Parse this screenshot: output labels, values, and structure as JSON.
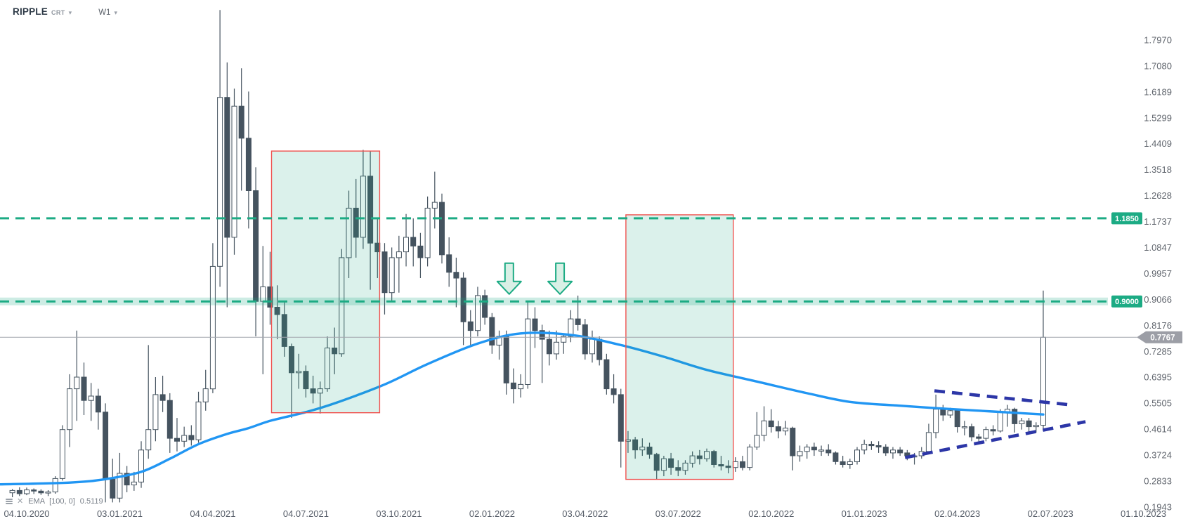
{
  "header": {
    "symbol": "RIPPLE",
    "symbol_suffix": "CRT",
    "timeframe": "W1",
    "caret_glyph": "▾"
  },
  "indicator": {
    "name": "EMA",
    "params": "[100, 0]",
    "value": "0.5119",
    "close_glyph": "✕",
    "icons": {
      "source": "rows-icon",
      "close": "close-icon"
    }
  },
  "colors": {
    "background": "#ffffff",
    "candle_up_fill": "#ffffff",
    "candle_down_fill": "#45535f",
    "candle_border": "#45535f",
    "ema_line": "#2196f3",
    "level_green": "#1cab84",
    "level_halo": "rgba(28,170,130,0.22)",
    "zone_fill": "rgba(28,170,130,0.16)",
    "zone_border": "#ef5350",
    "trendline_navy": "#2c36a7",
    "price_line_gray": "#a2a5ad",
    "price_badge_gray": "#9c9ea6",
    "axis_text": "#61666e",
    "date_text": "#565d68",
    "arrow_fill": "#d9f0e6",
    "arrow_stroke": "#1cab84",
    "badge_text": "#ffffff"
  },
  "chart_data": {
    "type": "candlestick",
    "symbol": "RIPPLE",
    "interval": "1W",
    "start_date": "2020-09-20",
    "y_axis": {
      "min": 0.1943,
      "max": 1.797,
      "ticks": [
        "1.7970",
        "1.7080",
        "1.6189",
        "1.5299",
        "1.4409",
        "1.3518",
        "1.2628",
        "1.1737",
        "1.0847",
        "0.9957",
        "0.9066",
        "0.8176",
        "0.7285",
        "0.6395",
        "0.5505",
        "0.4614",
        "0.3724",
        "0.2833",
        "0.1943"
      ]
    },
    "x_axis": {
      "labels": [
        "04.10.2020",
        "03.01.2021",
        "04.04.2021",
        "04.07.2021",
        "03.10.2021",
        "02.01.2022",
        "03.04.2022",
        "03.07.2022",
        "02.10.2022",
        "01.01.2023",
        "02.04.2023",
        "02.07.2023",
        "01.10.2023"
      ]
    },
    "current_price": {
      "value": 0.7767,
      "label": "0.7767"
    },
    "levels": [
      {
        "price": 1.185,
        "label": "1.1850",
        "halo": false
      },
      {
        "price": 0.9,
        "label": "0.9000",
        "halo": true
      }
    ],
    "zones": [
      {
        "week_start": 36.2,
        "week_end": 51.3,
        "price_top": 1.416,
        "price_bottom": 0.518
      },
      {
        "week_start": 85.7,
        "week_end": 100.7,
        "price_top": 1.197,
        "price_bottom": 0.289
      }
    ],
    "trendlines": [
      {
        "week1": 128.8,
        "price1": 0.593,
        "week2": 148.2,
        "price2": 0.544
      },
      {
        "week1": 124.7,
        "price1": 0.364,
        "week2": 149.9,
        "price2": 0.487
      }
    ],
    "arrows": [
      {
        "week": 69.4,
        "price": 0.925
      },
      {
        "week": 76.5,
        "price": 0.925
      }
    ],
    "ema": {
      "period": 100,
      "offset": 0,
      "last_value": 0.5119,
      "points": [
        [
          -1.73,
          0.272
        ],
        [
          8,
          0.278
        ],
        [
          13,
          0.29
        ],
        [
          18,
          0.315
        ],
        [
          22,
          0.36
        ],
        [
          26,
          0.41
        ],
        [
          30,
          0.445
        ],
        [
          33,
          0.465
        ],
        [
          36,
          0.49
        ],
        [
          41,
          0.52
        ],
        [
          45,
          0.55
        ],
        [
          52,
          0.615
        ],
        [
          58,
          0.685
        ],
        [
          65,
          0.755
        ],
        [
          71,
          0.79
        ],
        [
          78,
          0.785
        ],
        [
          85,
          0.75
        ],
        [
          91,
          0.71
        ],
        [
          97,
          0.665
        ],
        [
          104,
          0.625
        ],
        [
          111,
          0.585
        ],
        [
          117,
          0.555
        ],
        [
          124,
          0.542
        ],
        [
          130,
          0.532
        ],
        [
          137,
          0.522
        ],
        [
          144,
          0.5119
        ]
      ]
    },
    "candles": {
      "ohlc": [
        [
          0.243,
          0.256,
          0.228,
          0.251
        ],
        [
          0.251,
          0.262,
          0.232,
          0.24
        ],
        [
          0.24,
          0.261,
          0.235,
          0.253
        ],
        [
          0.253,
          0.258,
          0.239,
          0.249
        ],
        [
          0.249,
          0.255,
          0.236,
          0.243
        ],
        [
          0.243,
          0.252,
          0.232,
          0.246
        ],
        [
          0.246,
          0.3,
          0.24,
          0.292
        ],
        [
          0.292,
          0.475,
          0.285,
          0.46
        ],
        [
          0.46,
          0.65,
          0.4,
          0.6
        ],
        [
          0.6,
          0.8,
          0.49,
          0.64
        ],
        [
          0.64,
          0.69,
          0.51,
          0.56
        ],
        [
          0.56,
          0.62,
          0.49,
          0.575
        ],
        [
          0.575,
          0.6,
          0.46,
          0.52
        ],
        [
          0.52,
          0.55,
          0.21,
          0.29
        ],
        [
          0.29,
          0.36,
          0.21,
          0.225
        ],
        [
          0.225,
          0.38,
          0.21,
          0.31
        ],
        [
          0.31,
          0.335,
          0.245,
          0.27
        ],
        [
          0.27,
          0.315,
          0.25,
          0.28
        ],
        [
          0.28,
          0.42,
          0.26,
          0.39
        ],
        [
          0.39,
          0.75,
          0.36,
          0.46
        ],
        [
          0.46,
          0.64,
          0.42,
          0.58
        ],
        [
          0.58,
          0.645,
          0.52,
          0.56
        ],
        [
          0.56,
          0.585,
          0.38,
          0.43
        ],
        [
          0.43,
          0.5,
          0.385,
          0.42
        ],
        [
          0.42,
          0.47,
          0.4,
          0.44
        ],
        [
          0.44,
          0.475,
          0.405,
          0.425
        ],
        [
          0.425,
          0.59,
          0.415,
          0.555
        ],
        [
          0.555,
          0.665,
          0.525,
          0.6
        ],
        [
          0.6,
          1.1,
          0.585,
          1.02
        ],
        [
          1.02,
          1.9,
          0.95,
          1.6
        ],
        [
          1.6,
          1.72,
          0.88,
          1.12
        ],
        [
          1.12,
          1.63,
          1.06,
          1.57
        ],
        [
          1.57,
          1.7,
          1.28,
          1.46
        ],
        [
          1.46,
          1.62,
          1.15,
          1.28
        ],
        [
          1.28,
          1.36,
          0.78,
          0.9
        ],
        [
          0.9,
          1.09,
          0.65,
          0.95
        ],
        [
          0.95,
          1.07,
          0.82,
          0.88
        ],
        [
          0.88,
          0.955,
          0.77,
          0.855
        ],
        [
          0.855,
          0.9,
          0.71,
          0.745
        ],
        [
          0.745,
          0.755,
          0.5,
          0.655
        ],
        [
          0.655,
          0.72,
          0.6,
          0.66
        ],
        [
          0.66,
          0.68,
          0.57,
          0.6
        ],
        [
          0.6,
          0.645,
          0.55,
          0.585
        ],
        [
          0.585,
          0.625,
          0.515,
          0.6
        ],
        [
          0.6,
          0.78,
          0.59,
          0.74
        ],
        [
          0.74,
          0.81,
          0.65,
          0.72
        ],
        [
          0.72,
          1.08,
          0.71,
          1.05
        ],
        [
          1.05,
          1.28,
          0.98,
          1.22
        ],
        [
          1.22,
          1.32,
          1.05,
          1.12
        ],
        [
          1.12,
          1.42,
          1.08,
          1.33
        ],
        [
          1.33,
          1.415,
          0.94,
          1.1
        ],
        [
          1.1,
          1.185,
          0.98,
          1.07
        ],
        [
          1.07,
          1.1,
          0.855,
          0.93
        ],
        [
          0.93,
          1.085,
          0.9,
          1.05
        ],
        [
          1.05,
          1.125,
          0.93,
          1.07
        ],
        [
          1.07,
          1.2,
          1.02,
          1.12
        ],
        [
          1.12,
          1.185,
          1.02,
          1.09
        ],
        [
          1.09,
          1.135,
          0.98,
          1.05
        ],
        [
          1.05,
          1.26,
          1.02,
          1.22
        ],
        [
          1.22,
          1.345,
          1.15,
          1.24
        ],
        [
          1.24,
          1.27,
          1.03,
          1.06
        ],
        [
          1.06,
          1.12,
          0.95,
          1.0
        ],
        [
          1.0,
          1.05,
          0.88,
          0.98
        ],
        [
          0.98,
          1.0,
          0.75,
          0.83
        ],
        [
          0.83,
          0.87,
          0.75,
          0.8
        ],
        [
          0.8,
          0.95,
          0.78,
          0.92
        ],
        [
          0.92,
          0.94,
          0.82,
          0.845
        ],
        [
          0.845,
          0.86,
          0.72,
          0.75
        ],
        [
          0.75,
          0.8,
          0.7,
          0.78
        ],
        [
          0.78,
          0.8,
          0.58,
          0.62
        ],
        [
          0.62,
          0.67,
          0.55,
          0.6
        ],
        [
          0.6,
          0.65,
          0.57,
          0.615
        ],
        [
          0.615,
          0.9,
          0.6,
          0.84
        ],
        [
          0.84,
          0.88,
          0.74,
          0.8
        ],
        [
          0.8,
          0.82,
          0.62,
          0.77
        ],
        [
          0.77,
          0.8,
          0.68,
          0.72
        ],
        [
          0.72,
          0.8,
          0.7,
          0.76
        ],
        [
          0.76,
          0.79,
          0.72,
          0.78
        ],
        [
          0.78,
          0.87,
          0.76,
          0.84
        ],
        [
          0.84,
          0.92,
          0.8,
          0.82
        ],
        [
          0.82,
          0.84,
          0.7,
          0.72
        ],
        [
          0.72,
          0.8,
          0.69,
          0.77
        ],
        [
          0.77,
          0.78,
          0.68,
          0.7
        ],
        [
          0.7,
          0.72,
          0.58,
          0.6
        ],
        [
          0.6,
          0.65,
          0.55,
          0.58
        ],
        [
          0.58,
          0.6,
          0.33,
          0.42
        ],
        [
          0.42,
          0.455,
          0.38,
          0.425
        ],
        [
          0.425,
          0.435,
          0.36,
          0.39
        ],
        [
          0.39,
          0.43,
          0.37,
          0.4
        ],
        [
          0.4,
          0.415,
          0.36,
          0.375
        ],
        [
          0.375,
          0.38,
          0.29,
          0.32
        ],
        [
          0.32,
          0.37,
          0.3,
          0.36
        ],
        [
          0.36,
          0.38,
          0.305,
          0.33
        ],
        [
          0.33,
          0.355,
          0.3,
          0.32
        ],
        [
          0.32,
          0.355,
          0.305,
          0.345
        ],
        [
          0.345,
          0.385,
          0.33,
          0.37
        ],
        [
          0.37,
          0.39,
          0.34,
          0.36
        ],
        [
          0.36,
          0.395,
          0.35,
          0.385
        ],
        [
          0.385,
          0.39,
          0.33,
          0.34
        ],
        [
          0.34,
          0.37,
          0.32,
          0.335
        ],
        [
          0.335,
          0.355,
          0.31,
          0.33
        ],
        [
          0.33,
          0.365,
          0.315,
          0.35
        ],
        [
          0.35,
          0.37,
          0.32,
          0.33
        ],
        [
          0.33,
          0.41,
          0.32,
          0.4
        ],
        [
          0.4,
          0.52,
          0.39,
          0.44
        ],
        [
          0.44,
          0.54,
          0.42,
          0.49
        ],
        [
          0.49,
          0.53,
          0.45,
          0.47
        ],
        [
          0.47,
          0.49,
          0.43,
          0.455
        ],
        [
          0.455,
          0.49,
          0.44,
          0.465
        ],
        [
          0.465,
          0.47,
          0.32,
          0.37
        ],
        [
          0.37,
          0.405,
          0.35,
          0.385
        ],
        [
          0.385,
          0.41,
          0.36,
          0.4
        ],
        [
          0.4,
          0.415,
          0.37,
          0.39
        ],
        [
          0.39,
          0.405,
          0.37,
          0.39
        ],
        [
          0.39,
          0.41,
          0.37,
          0.38
        ],
        [
          0.38,
          0.385,
          0.34,
          0.35
        ],
        [
          0.35,
          0.37,
          0.33,
          0.34
        ],
        [
          0.34,
          0.36,
          0.325,
          0.35
        ],
        [
          0.35,
          0.4,
          0.34,
          0.39
        ],
        [
          0.39,
          0.425,
          0.375,
          0.41
        ],
        [
          0.41,
          0.42,
          0.39,
          0.405
        ],
        [
          0.405,
          0.42,
          0.38,
          0.4
        ],
        [
          0.4,
          0.41,
          0.37,
          0.38
        ],
        [
          0.38,
          0.4,
          0.36,
          0.39
        ],
        [
          0.39,
          0.4,
          0.37,
          0.38
        ],
        [
          0.38,
          0.39,
          0.355,
          0.37
        ],
        [
          0.37,
          0.38,
          0.34,
          0.37
        ],
        [
          0.37,
          0.4,
          0.36,
          0.385
        ],
        [
          0.385,
          0.48,
          0.375,
          0.45
        ],
        [
          0.45,
          0.58,
          0.43,
          0.53
        ],
        [
          0.53,
          0.545,
          0.49,
          0.51
        ],
        [
          0.51,
          0.535,
          0.5,
          0.525
        ],
        [
          0.525,
          0.53,
          0.45,
          0.47
        ],
        [
          0.47,
          0.49,
          0.44,
          0.47
        ],
        [
          0.47,
          0.48,
          0.42,
          0.435
        ],
        [
          0.435,
          0.445,
          0.41,
          0.43
        ],
        [
          0.43,
          0.47,
          0.42,
          0.46
        ],
        [
          0.46,
          0.475,
          0.44,
          0.455
        ],
        [
          0.455,
          0.53,
          0.45,
          0.52
        ],
        [
          0.52,
          0.545,
          0.47,
          0.53
        ],
        [
          0.53,
          0.535,
          0.45,
          0.48
        ],
        [
          0.48,
          0.5,
          0.46,
          0.49
        ],
        [
          0.49,
          0.5,
          0.45,
          0.47
        ],
        [
          0.47,
          0.485,
          0.45,
          0.475
        ],
        [
          0.475,
          0.937,
          0.455,
          0.7767
        ]
      ]
    }
  }
}
